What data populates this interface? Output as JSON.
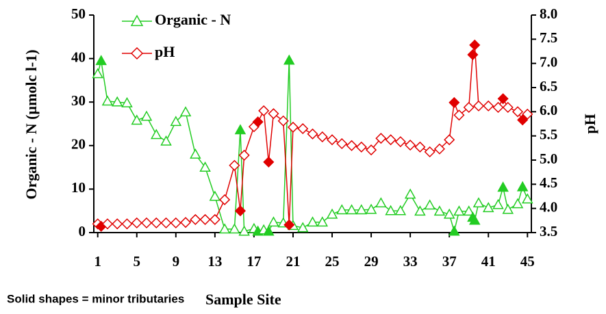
{
  "chart_data": {
    "type": "line",
    "x_label": "Sample Site",
    "y_label": "Organic - N (µmolc l-1)",
    "y2_label": "pH",
    "annotation": "Solid shapes = minor tributaries",
    "x": [
      1,
      1.35,
      2,
      3,
      4,
      5,
      6,
      7,
      8,
      9,
      10,
      11,
      12,
      13,
      14,
      15,
      15.6,
      16,
      17,
      17.4,
      18,
      18.5,
      19,
      20,
      20.6,
      21,
      22,
      23,
      24,
      25,
      26,
      27,
      28,
      29,
      30,
      31,
      32,
      33,
      34,
      35,
      36,
      37,
      37.5,
      38,
      39,
      39.4,
      39.6,
      40,
      41,
      42,
      42.5,
      43,
      44,
      44.5,
      45
    ],
    "marker_filled": [
      false,
      true,
      false,
      false,
      false,
      false,
      false,
      false,
      false,
      false,
      false,
      false,
      false,
      false,
      false,
      false,
      true,
      false,
      false,
      true,
      false,
      true,
      false,
      false,
      true,
      false,
      false,
      false,
      false,
      false,
      false,
      false,
      false,
      false,
      false,
      false,
      false,
      false,
      false,
      false,
      false,
      false,
      true,
      false,
      false,
      true,
      true,
      false,
      false,
      false,
      true,
      false,
      false,
      true,
      false
    ],
    "series": [
      {
        "name": "Organic - N",
        "color": "#22cc22",
        "marker": "triangle",
        "values": [
          36.5,
          39.5,
          30.2,
          30,
          29.8,
          25.8,
          26.7,
          22.5,
          21,
          25.5,
          27.7,
          18,
          15,
          8.3,
          0.8,
          0.8,
          23.6,
          0.3,
          0.9,
          0.3,
          0.6,
          0.3,
          2.4,
          2.2,
          39.6,
          1.6,
          1.1,
          2.4,
          2.4,
          4.2,
          5.2,
          5.2,
          5.2,
          5.3,
          6.8,
          5,
          5,
          8.8,
          4.9,
          6.3,
          4.9,
          4.2,
          0.3,
          4.9,
          4.9,
          3.5,
          2.8,
          6.8,
          5.7,
          6.4,
          10.4,
          5.3,
          6.6,
          10.5,
          7.7
        ]
      },
      {
        "name": "pH",
        "color": "#e00000",
        "marker": "diamond",
        "axis": "y2",
        "values": [
          3.68,
          3.63,
          3.68,
          3.68,
          3.68,
          3.7,
          3.7,
          3.7,
          3.7,
          3.7,
          3.71,
          3.77,
          3.77,
          3.77,
          4.18,
          4.89,
          3.95,
          5.1,
          5.69,
          5.79,
          6.02,
          4.96,
          5.96,
          5.81,
          3.66,
          5.68,
          5.65,
          5.54,
          5.48,
          5.42,
          5.34,
          5.3,
          5.27,
          5.21,
          5.45,
          5.42,
          5.38,
          5.31,
          5.27,
          5.17,
          5.23,
          5.42,
          6.19,
          5.93,
          6.09,
          7.18,
          7.38,
          6.12,
          6.12,
          6.09,
          6.27,
          6.09,
          6.0,
          5.83,
          5.95
        ]
      }
    ],
    "xlim": [
      0.6,
      45.4
    ],
    "xticks": [
      1,
      5,
      9,
      13,
      17,
      21,
      25,
      29,
      33,
      37,
      41,
      45
    ],
    "ylim": [
      0,
      50
    ],
    "yticks": [
      0,
      10,
      20,
      30,
      40,
      50
    ],
    "y2lim": [
      3.5,
      8
    ],
    "y2ticks": [
      3.5,
      {
        "value": 4,
        "label": "4.0"
      },
      4.5,
      {
        "value": 5,
        "label": "5.0"
      },
      5.5,
      {
        "value": 6,
        "label": "6.0"
      },
      6.5,
      {
        "value": 7,
        "label": "7.0"
      },
      7.5,
      {
        "value": 8,
        "label": "8.0"
      }
    ],
    "legend": "top-left"
  }
}
